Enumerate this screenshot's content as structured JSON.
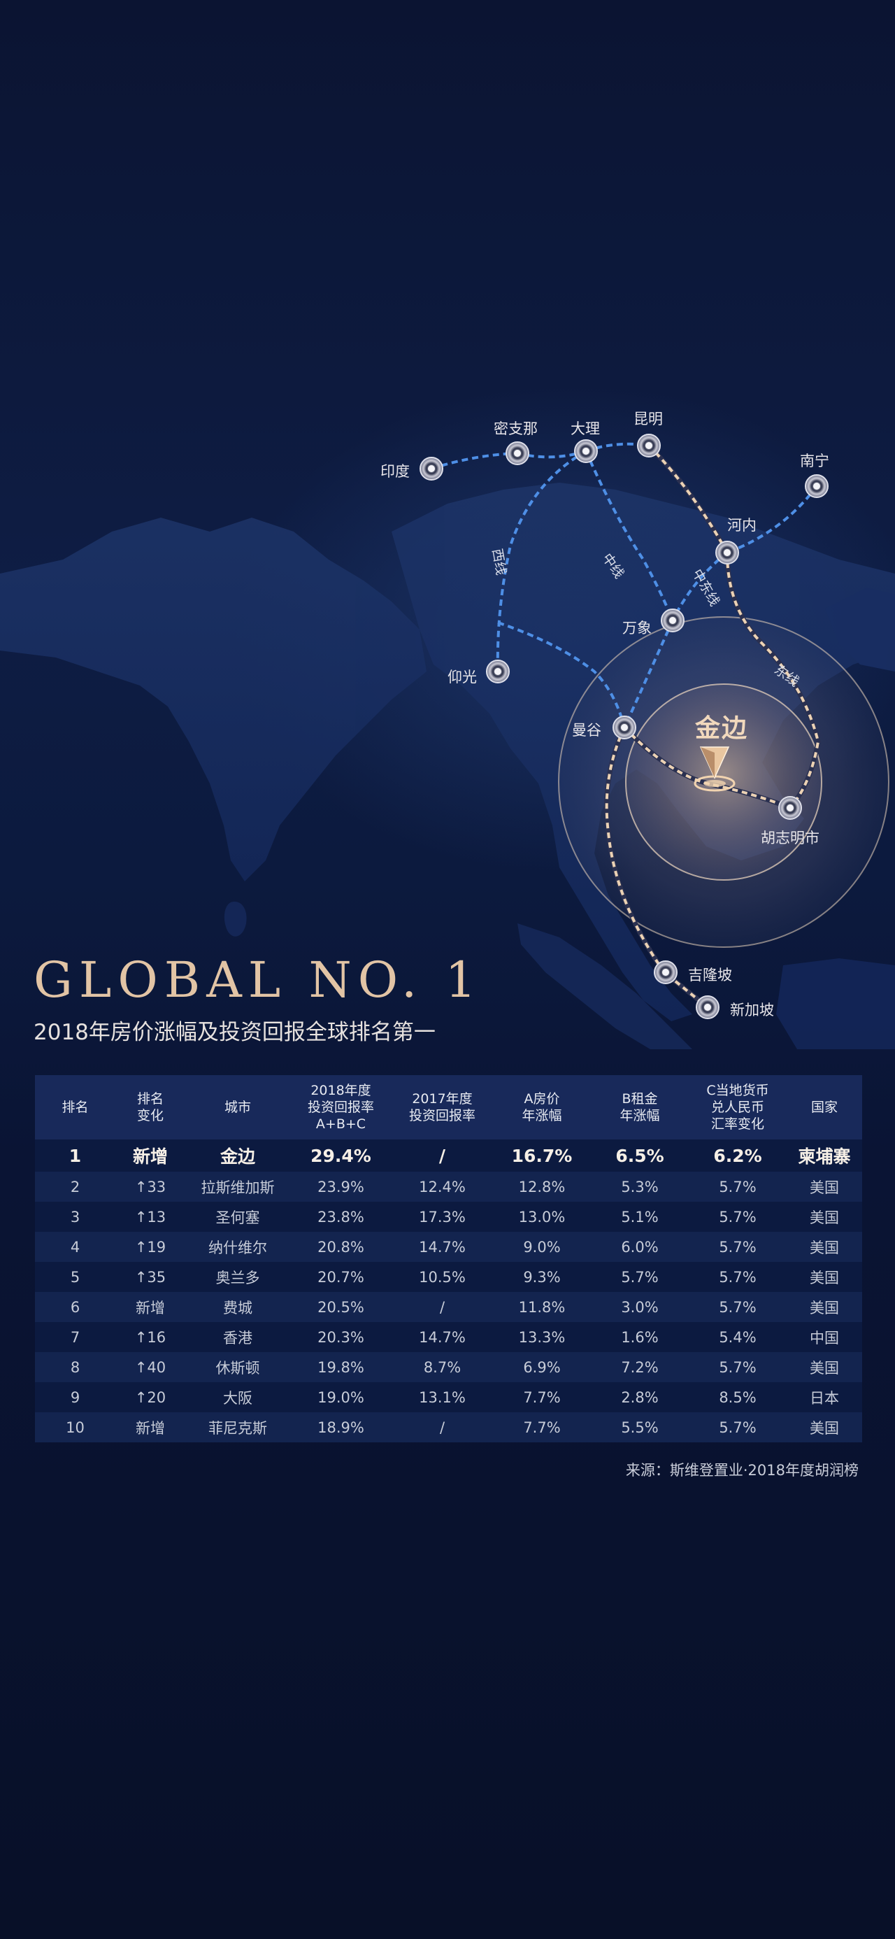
{
  "map": {
    "hero_city": "金边",
    "cities": [
      {
        "id": "india",
        "name": "印度"
      },
      {
        "id": "myitkyina",
        "name": "密支那"
      },
      {
        "id": "dali",
        "name": "大理"
      },
      {
        "id": "kunming",
        "name": "昆明"
      },
      {
        "id": "nanning",
        "name": "南宁"
      },
      {
        "id": "hanoi",
        "name": "河内"
      },
      {
        "id": "vientiane",
        "name": "万象"
      },
      {
        "id": "yangon",
        "name": "仰光"
      },
      {
        "id": "bangkok",
        "name": "曼谷"
      },
      {
        "id": "hcmc",
        "name": "胡志明市"
      },
      {
        "id": "kl",
        "name": "吉隆坡"
      },
      {
        "id": "singapore",
        "name": "新加坡"
      }
    ],
    "routes": {
      "west": "西线",
      "middle": "中线",
      "middle_east": "中东线",
      "east": "东线"
    },
    "colors": {
      "blue_line": "#4e8fe6",
      "gold_line": "#e8c9a6",
      "ring": "#e9d3bb"
    }
  },
  "header": {
    "title": "GLOBAL NO. 1",
    "subtitle": "2018年房价涨幅及投资回报全球排名第一"
  },
  "table": {
    "columns": [
      {
        "id": "rank",
        "lines": [
          "排名"
        ]
      },
      {
        "id": "change",
        "lines": [
          "排名",
          "变化"
        ]
      },
      {
        "id": "city",
        "lines": [
          "城市"
        ]
      },
      {
        "id": "r2018",
        "lines": [
          "2018年度",
          "投资回报率",
          "A+B+C"
        ]
      },
      {
        "id": "r2017",
        "lines": [
          "2017年度",
          "投资回报率"
        ]
      },
      {
        "id": "price",
        "lines": [
          "A房价",
          "年涨幅"
        ]
      },
      {
        "id": "rent",
        "lines": [
          "B租金",
          "年涨幅"
        ]
      },
      {
        "id": "fx",
        "lines": [
          "C当地货币",
          "兑人民币",
          "汇率变化"
        ]
      },
      {
        "id": "country",
        "lines": [
          "国家"
        ]
      }
    ],
    "rows": [
      [
        "1",
        "新增",
        "金边",
        "29.4%",
        "/",
        "16.7%",
        "6.5%",
        "6.2%",
        "柬埔寨"
      ],
      [
        "2",
        "↑33",
        "拉斯维加斯",
        "23.9%",
        "12.4%",
        "12.8%",
        "5.3%",
        "5.7%",
        "美国"
      ],
      [
        "3",
        "↑13",
        "圣何塞",
        "23.8%",
        "17.3%",
        "13.0%",
        "5.1%",
        "5.7%",
        "美国"
      ],
      [
        "4",
        "↑19",
        "纳什维尔",
        "20.8%",
        "14.7%",
        "9.0%",
        "6.0%",
        "5.7%",
        "美国"
      ],
      [
        "5",
        "↑35",
        "奥兰多",
        "20.7%",
        "10.5%",
        "9.3%",
        "5.7%",
        "5.7%",
        "美国"
      ],
      [
        "6",
        "新增",
        "费城",
        "20.5%",
        "/",
        "11.8%",
        "3.0%",
        "5.7%",
        "美国"
      ],
      [
        "7",
        "↑16",
        "香港",
        "20.3%",
        "14.7%",
        "13.3%",
        "1.6%",
        "5.4%",
        "中国"
      ],
      [
        "8",
        "↑40",
        "休斯顿",
        "19.8%",
        "8.7%",
        "6.9%",
        "7.2%",
        "5.7%",
        "美国"
      ],
      [
        "9",
        "↑20",
        "大阪",
        "19.0%",
        "13.1%",
        "7.7%",
        "2.8%",
        "8.5%",
        "日本"
      ],
      [
        "10",
        "新增",
        "菲尼克斯",
        "18.9%",
        "/",
        "7.7%",
        "5.5%",
        "5.7%",
        "美国"
      ]
    ]
  },
  "source": "来源：斯维登置业·2018年度胡润榜"
}
